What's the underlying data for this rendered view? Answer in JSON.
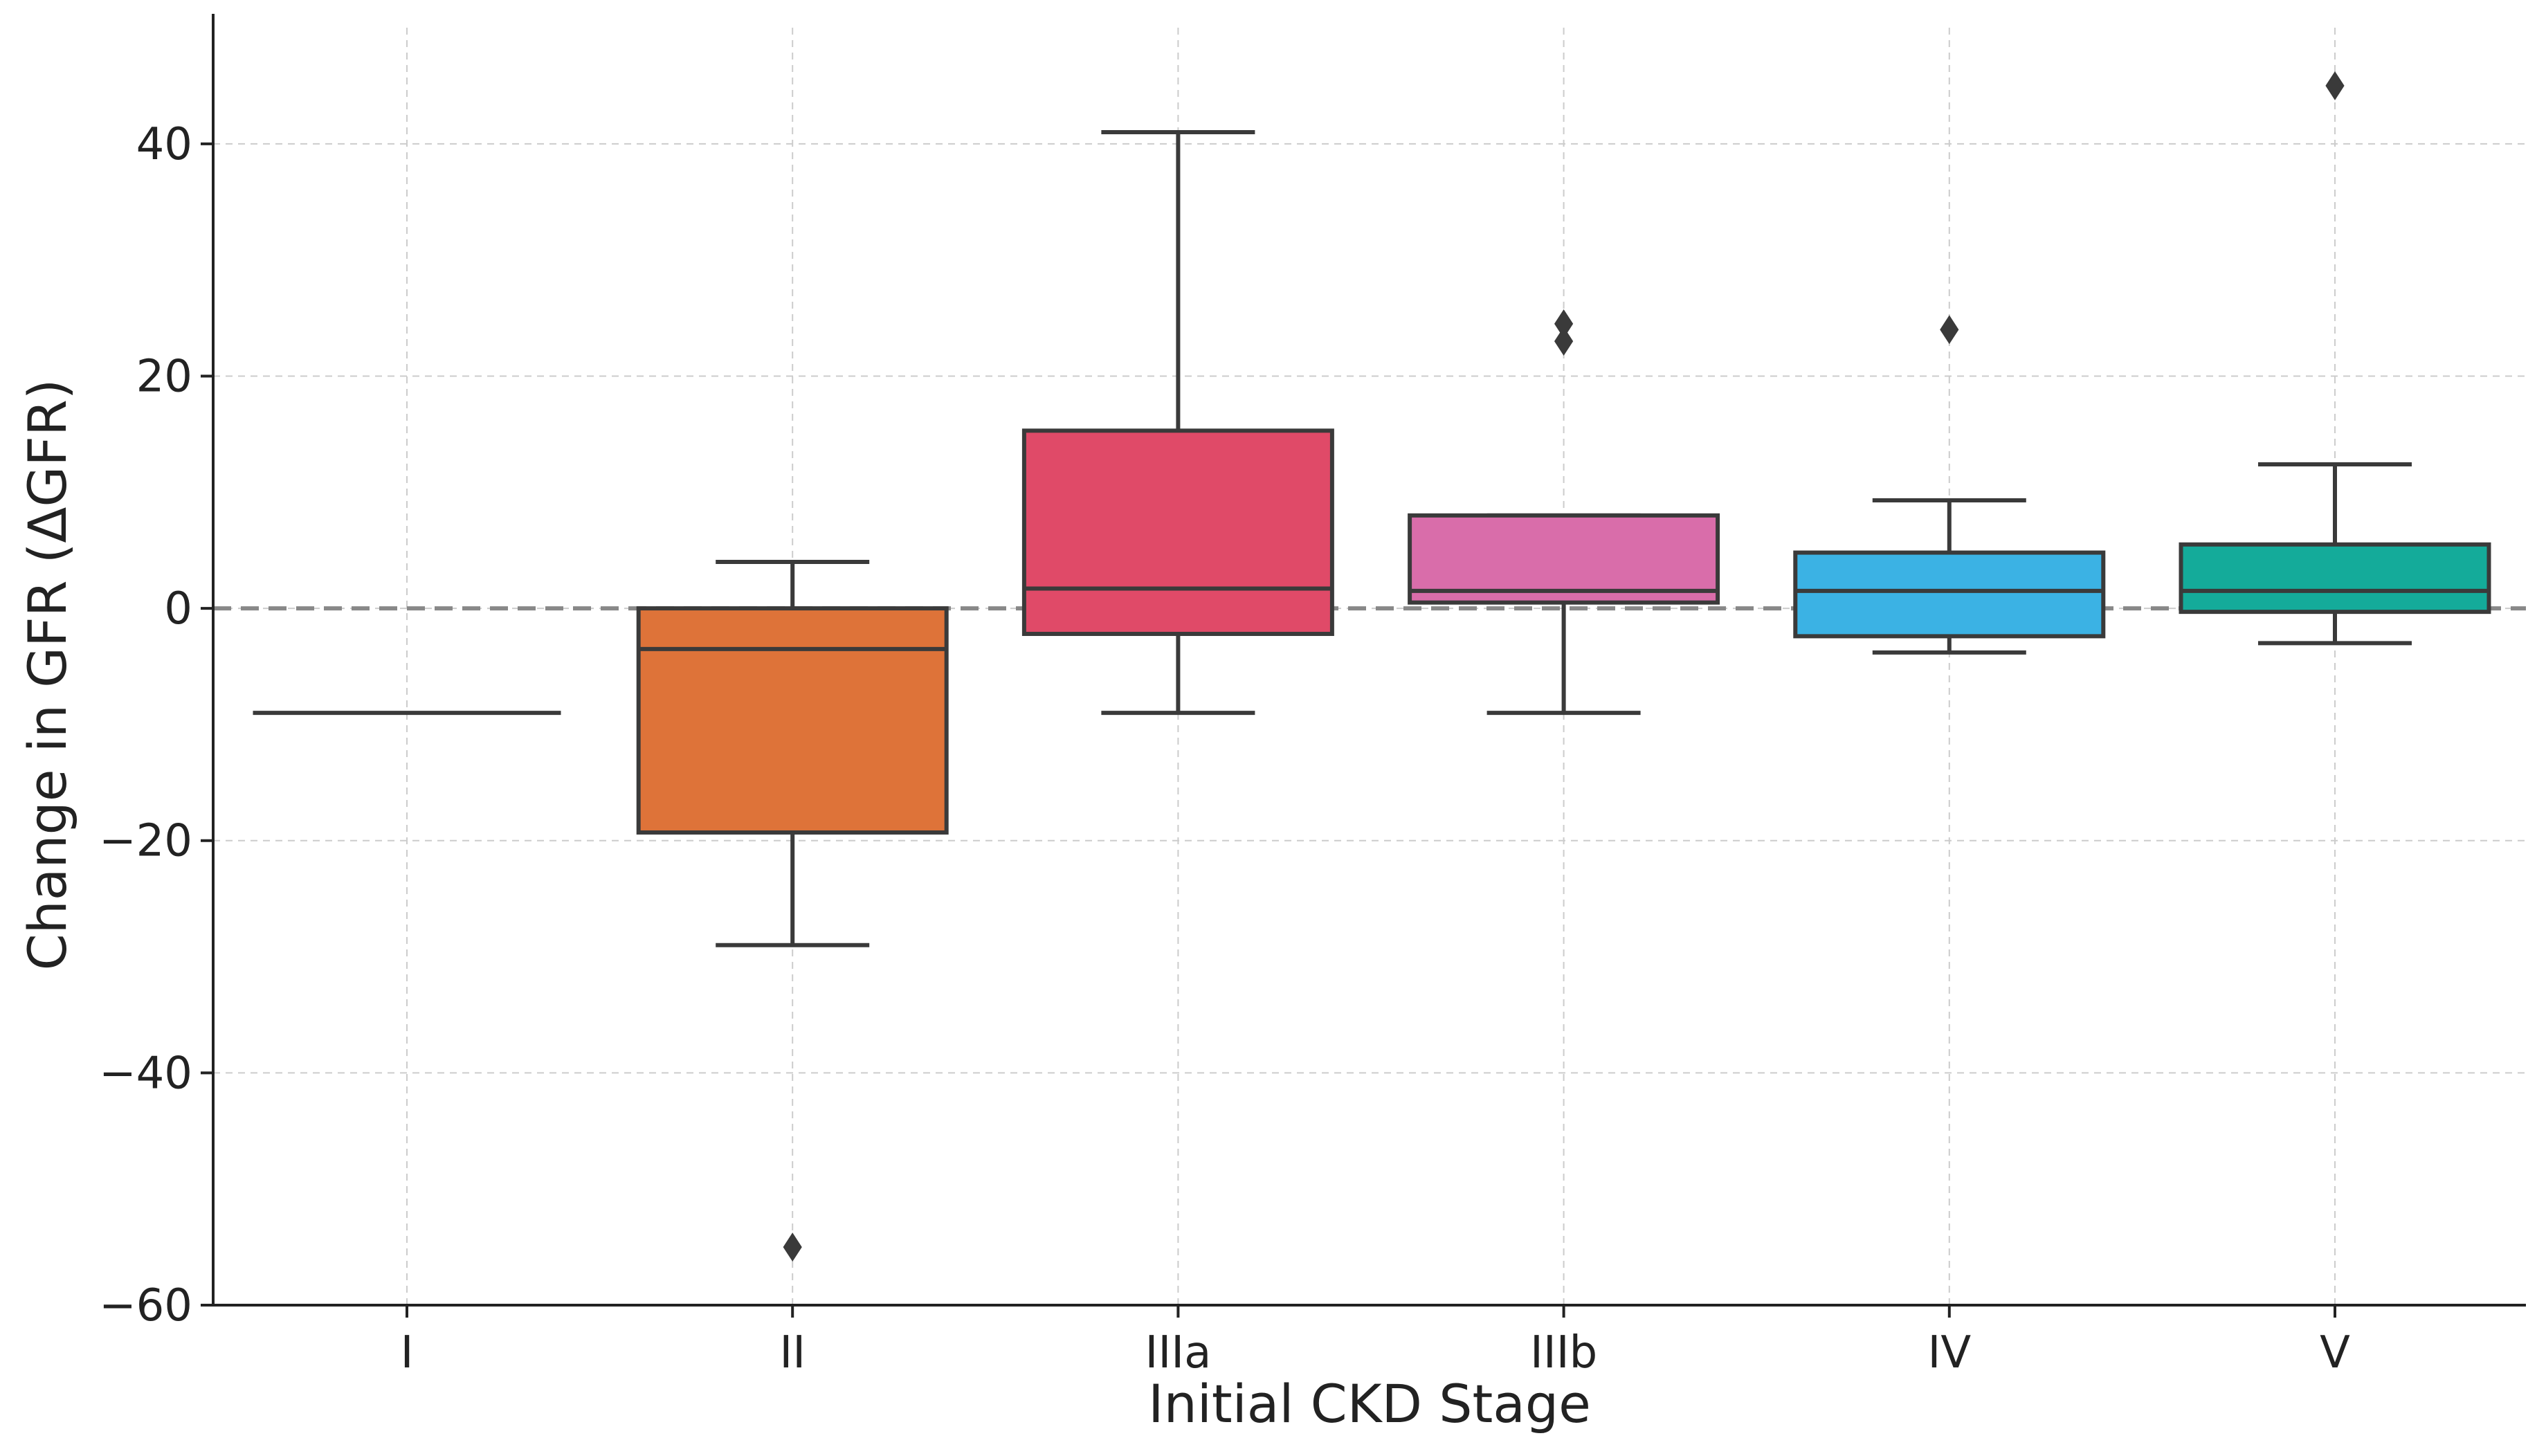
{
  "chart_data": {
    "type": "box",
    "title": "",
    "xlabel": "Initial CKD Stage",
    "ylabel": "Change in GFR (ΔGFR)",
    "ylim": [
      -60,
      50
    ],
    "yticks": [
      -60,
      -40,
      -20,
      0,
      20,
      40
    ],
    "ytick_labels": [
      "−60",
      "−40",
      "−20",
      "0",
      "20",
      "40"
    ],
    "grid": true,
    "reference_line": {
      "y": 0,
      "style": "dashed"
    },
    "categories": [
      "I",
      "II",
      "IIIa",
      "IIIb",
      "IV",
      "V"
    ],
    "boxes": [
      {
        "category": "I",
        "whisker_low": -9,
        "q1": -9,
        "median": -9,
        "q3": -9,
        "whisker_high": -9,
        "outliers": [],
        "color": "#e8554e"
      },
      {
        "category": "II",
        "whisker_low": -29,
        "q1": -19.3,
        "median": -3.5,
        "q3": 0,
        "whisker_high": 4,
        "outliers": [
          -55
        ],
        "color": "#de7339"
      },
      {
        "category": "IIIa",
        "whisker_low": -9,
        "q1": -2.2,
        "median": 1.7,
        "q3": 15.3,
        "whisker_high": 41,
        "outliers": [],
        "color": "#e04a68"
      },
      {
        "category": "IIIb",
        "whisker_low": -9,
        "q1": 0.5,
        "median": 1.5,
        "q3": 8,
        "whisker_high": 8,
        "outliers": [
          23,
          24.5
        ],
        "color": "#d96daa"
      },
      {
        "category": "IV",
        "whisker_low": -3.8,
        "q1": -2.4,
        "median": 1.5,
        "q3": 4.8,
        "whisker_high": 9.3,
        "outliers": [
          24
        ],
        "color": "#3bb2e4"
      },
      {
        "category": "V",
        "whisker_low": -3,
        "q1": -0.3,
        "median": 1.5,
        "q3": 5.5,
        "whisker_high": 12.4,
        "outliers": [
          45
        ],
        "color": "#14ab9a"
      }
    ]
  }
}
